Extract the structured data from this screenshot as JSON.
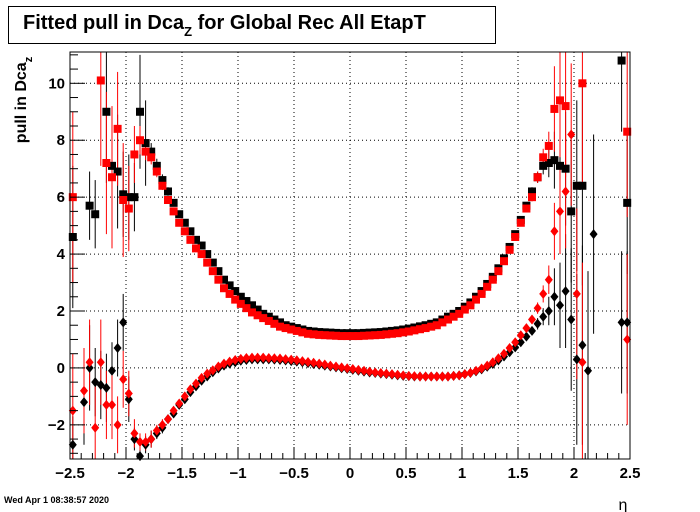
{
  "header": {
    "title_main": "Fitted pull in Dca",
    "title_sub": "Z",
    "title_tail": " for Global Rec All EtapT"
  },
  "footer": {
    "timestamp": "Wed Apr  1 08:38:57 2020"
  },
  "colors": {
    "series_black": "#000000",
    "series_red": "#ff0000",
    "grid": "#000000",
    "background": "#ffffff"
  },
  "chart_data": {
    "type": "scatter",
    "title": "Fitted pull in Dca_Z for Global Rec All EtapT",
    "xlabel": "η",
    "ylabel": "pull in Dca_Z",
    "xlim": [
      -2.5,
      2.5
    ],
    "ylim": [
      -3.2,
      11.1
    ],
    "x_ticks": [
      "−2.5",
      "−2",
      "−1.5",
      "−1",
      "−0.5",
      "0",
      "0.5",
      "1",
      "1.5",
      "2",
      "2.5"
    ],
    "x_tick_values": [
      -2.5,
      -2,
      -1.5,
      -1,
      -0.5,
      0,
      0.5,
      1,
      1.5,
      2,
      2.5
    ],
    "y_ticks": [
      "−2",
      "0",
      "2",
      "4",
      "6",
      "8",
      "10"
    ],
    "y_tick_values": [
      -2,
      0,
      2,
      4,
      6,
      8,
      10
    ],
    "grid": true,
    "x": [
      -2.475,
      -2.425,
      -2.375,
      -2.325,
      -2.275,
      -2.225,
      -2.175,
      -2.125,
      -2.075,
      -2.025,
      -1.975,
      -1.925,
      -1.875,
      -1.825,
      -1.775,
      -1.725,
      -1.675,
      -1.625,
      -1.575,
      -1.525,
      -1.475,
      -1.425,
      -1.375,
      -1.325,
      -1.275,
      -1.225,
      -1.175,
      -1.125,
      -1.075,
      -1.025,
      -0.975,
      -0.925,
      -0.875,
      -0.825,
      -0.775,
      -0.725,
      -0.675,
      -0.625,
      -0.575,
      -0.525,
      -0.475,
      -0.425,
      -0.375,
      -0.325,
      -0.275,
      -0.225,
      -0.175,
      -0.125,
      -0.075,
      -0.025,
      0.025,
      0.075,
      0.125,
      0.175,
      0.225,
      0.275,
      0.325,
      0.375,
      0.425,
      0.475,
      0.525,
      0.575,
      0.625,
      0.675,
      0.725,
      0.775,
      0.825,
      0.875,
      0.925,
      0.975,
      1.025,
      1.075,
      1.125,
      1.175,
      1.225,
      1.275,
      1.325,
      1.375,
      1.425,
      1.475,
      1.525,
      1.575,
      1.625,
      1.675,
      1.725,
      1.775,
      1.825,
      1.875,
      1.925,
      1.975,
      2.025,
      2.075,
      2.125,
      2.175,
      2.225,
      2.275,
      2.325,
      2.375,
      2.425,
      2.475
    ],
    "series": [
      {
        "marker": "square",
        "color": "#000000",
        "values": [
          4.6,
          null,
          null,
          5.7,
          5.4,
          null,
          9.0,
          7.1,
          6.9,
          6.1,
          6.0,
          6.0,
          9.0,
          7.9,
          7.6,
          7.1,
          6.6,
          6.2,
          5.8,
          5.4,
          5.1,
          4.8,
          4.5,
          4.3,
          4.0,
          3.7,
          3.4,
          3.1,
          2.9,
          2.7,
          2.5,
          2.35,
          2.2,
          2.05,
          1.9,
          1.8,
          1.7,
          1.6,
          1.5,
          1.45,
          1.4,
          1.35,
          1.3,
          1.28,
          1.26,
          1.25,
          1.24,
          1.23,
          1.22,
          1.22,
          1.22,
          1.22,
          1.23,
          1.24,
          1.25,
          1.26,
          1.28,
          1.3,
          1.32,
          1.35,
          1.38,
          1.42,
          1.46,
          1.5,
          1.55,
          1.6,
          1.7,
          1.8,
          1.9,
          2.0,
          2.15,
          2.3,
          2.5,
          2.7,
          2.95,
          3.2,
          3.5,
          3.85,
          4.25,
          4.7,
          5.2,
          5.7,
          6.2,
          6.7,
          7.1,
          7.2,
          7.3,
          7.1,
          7.0,
          5.5,
          6.4,
          6.4,
          null,
          null,
          null,
          null,
          null,
          null,
          10.8,
          5.8
        ],
        "errors": [
          2.5,
          0,
          0,
          1.2,
          1.2,
          0,
          2.5,
          2.0,
          2.0,
          1.5,
          1.5,
          1.2,
          2.0,
          1.5,
          0.3,
          0.25,
          0.2,
          0.15,
          0.1,
          0.1,
          0.08,
          0.07,
          0.06,
          0.05,
          0.05,
          0.05,
          0.05,
          0.05,
          0.05,
          0.05,
          0.05,
          0.05,
          0.05,
          0.05,
          0.05,
          0.05,
          0.05,
          0.05,
          0.05,
          0.05,
          0.05,
          0.05,
          0.05,
          0.05,
          0.05,
          0.05,
          0.05,
          0.05,
          0.05,
          0.05,
          0.05,
          0.05,
          0.05,
          0.05,
          0.05,
          0.05,
          0.05,
          0.05,
          0.05,
          0.05,
          0.05,
          0.05,
          0.05,
          0.05,
          0.05,
          0.05,
          0.05,
          0.05,
          0.05,
          0.05,
          0.05,
          0.05,
          0.05,
          0.05,
          0.05,
          0.05,
          0.05,
          0.06,
          0.07,
          0.08,
          0.1,
          0.12,
          0.15,
          0.2,
          0.3,
          0.5,
          1.0,
          1.5,
          2.0,
          2.5,
          3.0,
          3.5,
          0,
          0,
          0,
          0,
          0,
          0,
          2.5,
          2.5
        ]
      },
      {
        "marker": "square",
        "color": "#ff0000",
        "values": [
          6.0,
          null,
          null,
          null,
          null,
          10.1,
          7.2,
          6.7,
          8.4,
          5.9,
          5.6,
          7.5,
          8.0,
          7.6,
          7.4,
          6.9,
          6.4,
          5.9,
          5.5,
          5.1,
          4.8,
          4.5,
          4.2,
          4.0,
          3.7,
          3.4,
          3.1,
          2.8,
          2.6,
          2.4,
          2.25,
          2.1,
          1.95,
          1.85,
          1.75,
          1.65,
          1.55,
          1.45,
          1.4,
          1.35,
          1.3,
          1.25,
          1.2,
          1.18,
          1.16,
          1.15,
          1.14,
          1.13,
          1.12,
          1.12,
          1.12,
          1.12,
          1.13,
          1.14,
          1.15,
          1.16,
          1.18,
          1.2,
          1.22,
          1.25,
          1.28,
          1.32,
          1.36,
          1.4,
          1.45,
          1.5,
          1.6,
          1.7,
          1.8,
          1.9,
          2.05,
          2.2,
          2.4,
          2.6,
          2.85,
          3.1,
          3.4,
          3.75,
          4.15,
          4.6,
          5.1,
          5.6,
          6.0,
          6.7,
          7.4,
          7.8,
          9.1,
          9.4,
          9.2,
          null,
          null,
          10.0,
          null,
          null,
          null,
          null,
          null,
          null,
          null,
          8.3
        ],
        "errors": [
          3.0,
          0,
          0,
          0,
          0,
          3.0,
          2.5,
          2.5,
          2.0,
          2.0,
          1.5,
          1.0,
          0.5,
          0.3,
          0.25,
          0.2,
          0.15,
          0.1,
          0.1,
          0.08,
          0.07,
          0.06,
          0.05,
          0.05,
          0.05,
          0.05,
          0.05,
          0.05,
          0.05,
          0.05,
          0.05,
          0.05,
          0.05,
          0.05,
          0.05,
          0.05,
          0.05,
          0.05,
          0.05,
          0.05,
          0.05,
          0.05,
          0.05,
          0.05,
          0.05,
          0.05,
          0.05,
          0.05,
          0.05,
          0.05,
          0.05,
          0.05,
          0.05,
          0.05,
          0.05,
          0.05,
          0.05,
          0.05,
          0.05,
          0.05,
          0.05,
          0.05,
          0.05,
          0.05,
          0.05,
          0.05,
          0.05,
          0.05,
          0.05,
          0.05,
          0.05,
          0.05,
          0.05,
          0.05,
          0.05,
          0.05,
          0.05,
          0.06,
          0.07,
          0.08,
          0.1,
          0.12,
          0.15,
          0.2,
          0.3,
          0.5,
          1.5,
          2.0,
          2.5,
          0,
          0,
          3.5,
          0,
          0,
          0,
          0,
          0,
          0,
          0,
          3.0
        ]
      },
      {
        "marker": "diamond",
        "color": "#000000",
        "values": [
          -2.7,
          null,
          -1.2,
          0.0,
          -0.5,
          -0.6,
          -0.7,
          -0.1,
          0.7,
          1.6,
          -1.1,
          -2.5,
          -3.1,
          -2.7,
          -2.5,
          -2.3,
          -2.1,
          -1.8,
          -1.6,
          -1.3,
          -1.1,
          -0.85,
          -0.65,
          -0.45,
          -0.3,
          -0.15,
          -0.02,
          0.08,
          0.15,
          0.2,
          0.25,
          0.28,
          0.3,
          0.3,
          0.3,
          0.3,
          0.29,
          0.28,
          0.26,
          0.24,
          0.22,
          0.2,
          0.17,
          0.14,
          0.11,
          0.08,
          0.05,
          0.02,
          -0.01,
          -0.04,
          -0.07,
          -0.1,
          -0.13,
          -0.16,
          -0.18,
          -0.2,
          -0.22,
          -0.24,
          -0.26,
          -0.28,
          -0.29,
          -0.3,
          -0.3,
          -0.3,
          -0.3,
          -0.3,
          -0.3,
          -0.3,
          -0.28,
          -0.26,
          -0.22,
          -0.18,
          -0.12,
          -0.05,
          0.04,
          0.14,
          0.26,
          0.4,
          0.55,
          0.72,
          0.9,
          1.1,
          1.3,
          1.55,
          1.8,
          2.0,
          2.5,
          2.2,
          2.7,
          1.7,
          0.3,
          0.8,
          -0.1,
          4.7,
          null,
          null,
          null,
          null,
          1.6,
          1.6
        ],
        "errors": [
          1.0,
          0,
          1.5,
          1.5,
          1.2,
          1.2,
          1.2,
          1.0,
          1.0,
          1.0,
          0.8,
          0.4,
          0.3,
          0.3,
          0.3,
          0.2,
          0.2,
          0.15,
          0.1,
          0.1,
          0.08,
          0.07,
          0.06,
          0.05,
          0.05,
          0.05,
          0.05,
          0.05,
          0.05,
          0.05,
          0.05,
          0.05,
          0.05,
          0.05,
          0.05,
          0.05,
          0.05,
          0.05,
          0.05,
          0.05,
          0.05,
          0.05,
          0.05,
          0.05,
          0.05,
          0.05,
          0.05,
          0.05,
          0.05,
          0.05,
          0.05,
          0.05,
          0.05,
          0.05,
          0.05,
          0.05,
          0.05,
          0.05,
          0.05,
          0.05,
          0.05,
          0.05,
          0.05,
          0.05,
          0.05,
          0.05,
          0.05,
          0.05,
          0.05,
          0.05,
          0.05,
          0.05,
          0.05,
          0.05,
          0.05,
          0.05,
          0.05,
          0.06,
          0.07,
          0.08,
          0.1,
          0.12,
          0.15,
          0.2,
          0.3,
          0.5,
          1.0,
          1.5,
          2.0,
          2.5,
          3.0,
          3.5,
          3.5,
          3.5,
          0,
          0,
          0,
          0,
          2.5,
          2.5
        ]
      },
      {
        "marker": "diamond",
        "color": "#ff0000",
        "values": [
          -1.5,
          null,
          -0.8,
          0.2,
          -2.1,
          0.2,
          -1.3,
          -1.3,
          -2.0,
          -0.4,
          -0.9,
          -2.3,
          -2.6,
          -2.6,
          -2.5,
          -2.2,
          -2.0,
          -1.8,
          -1.5,
          -1.25,
          -1.0,
          -0.75,
          -0.55,
          -0.35,
          -0.2,
          -0.08,
          0.05,
          0.15,
          0.22,
          0.28,
          0.32,
          0.35,
          0.36,
          0.36,
          0.36,
          0.35,
          0.34,
          0.33,
          0.31,
          0.29,
          0.27,
          0.24,
          0.21,
          0.18,
          0.15,
          0.12,
          0.08,
          0.05,
          0.02,
          -0.01,
          -0.04,
          -0.07,
          -0.1,
          -0.13,
          -0.16,
          -0.18,
          -0.2,
          -0.22,
          -0.24,
          -0.26,
          -0.28,
          -0.29,
          -0.3,
          -0.3,
          -0.3,
          -0.3,
          -0.3,
          -0.3,
          -0.28,
          -0.26,
          -0.22,
          -0.17,
          -0.1,
          -0.02,
          0.08,
          0.2,
          0.34,
          0.5,
          0.7,
          0.9,
          1.15,
          1.4,
          1.7,
          2.1,
          2.6,
          3.1,
          4.8,
          5.5,
          6.2,
          8.2,
          2.6,
          0.2,
          null,
          null,
          null,
          null,
          null,
          null,
          null,
          1.0
        ],
        "errors": [
          2.0,
          0,
          1.5,
          1.5,
          1.5,
          1.5,
          1.2,
          1.2,
          1.0,
          1.0,
          0.8,
          0.5,
          0.3,
          0.3,
          0.3,
          0.2,
          0.2,
          0.15,
          0.1,
          0.1,
          0.08,
          0.07,
          0.06,
          0.05,
          0.05,
          0.05,
          0.05,
          0.05,
          0.05,
          0.05,
          0.05,
          0.05,
          0.05,
          0.05,
          0.05,
          0.05,
          0.05,
          0.05,
          0.05,
          0.05,
          0.05,
          0.05,
          0.05,
          0.05,
          0.05,
          0.05,
          0.05,
          0.05,
          0.05,
          0.05,
          0.05,
          0.05,
          0.05,
          0.05,
          0.05,
          0.05,
          0.05,
          0.05,
          0.05,
          0.05,
          0.05,
          0.05,
          0.05,
          0.05,
          0.05,
          0.05,
          0.05,
          0.05,
          0.05,
          0.05,
          0.05,
          0.05,
          0.05,
          0.05,
          0.05,
          0.05,
          0.05,
          0.06,
          0.07,
          0.08,
          0.1,
          0.12,
          0.15,
          0.2,
          0.3,
          0.5,
          1.0,
          1.5,
          2.0,
          2.5,
          3.0,
          3.5,
          0,
          0,
          0,
          0,
          0,
          0,
          0,
          3.0
        ]
      }
    ]
  }
}
